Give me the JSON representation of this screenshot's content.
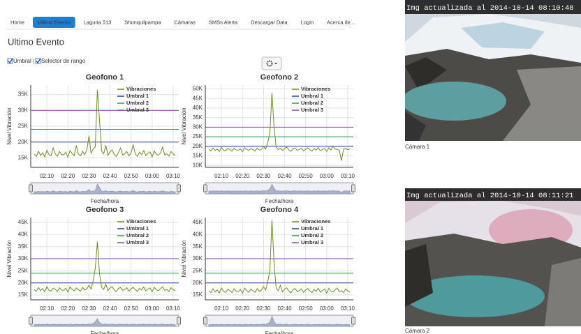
{
  "nav": {
    "items": [
      "Home",
      "Ultimo Evento",
      "Laguna 513",
      "Shonquilpampa",
      "Cámaras",
      "SMSs Alerta",
      "Descargar Data",
      "Login",
      "Acerca de..."
    ],
    "active": 1
  },
  "heading": "Ultimo Evento",
  "controls": {
    "checkboxes": [
      "Umbral",
      "Selector de rango"
    ]
  },
  "charts": [
    {
      "type": "line",
      "title": "Geofono 1",
      "y_label": "Nivel Vibración",
      "x_label": "Fecha/hora",
      "grid": true,
      "x": [
        "02:04",
        "02:05",
        "02:06",
        "02:07",
        "02:08",
        "02:09",
        "02:10",
        "02:11",
        "02:12",
        "02:13",
        "02:14",
        "02:15",
        "02:16",
        "02:17",
        "02:18",
        "02:19",
        "02:20",
        "02:21",
        "02:22",
        "02:23",
        "02:24",
        "02:25",
        "02:26",
        "02:27",
        "02:28",
        "02:29",
        "02:30",
        "02:31",
        "02:32",
        "02:33",
        "02:34",
        "02:35",
        "02:36",
        "02:37",
        "02:38",
        "02:39",
        "02:40",
        "02:41",
        "02:42",
        "02:43",
        "02:44",
        "02:45",
        "02:46",
        "02:47",
        "02:48",
        "02:49",
        "02:50",
        "02:51",
        "02:52",
        "02:53",
        "02:54",
        "02:55",
        "02:56",
        "02:57",
        "02:58",
        "02:59",
        "03:00",
        "03:01",
        "03:02",
        "03:03",
        "03:04",
        "03:05",
        "03:06",
        "03:07",
        "03:08",
        "03:09",
        "03:10",
        "03:11"
      ],
      "xticks": [
        "02:10",
        "02:20",
        "02:30",
        "02:40",
        "02:50",
        "03:00",
        "03:10"
      ],
      "ylim": [
        12000,
        38000
      ],
      "yticks": [
        {
          "value": 15000,
          "label": "15K"
        },
        {
          "value": 20000,
          "label": "20K"
        },
        {
          "value": 25000,
          "label": "25K"
        },
        {
          "value": 30000,
          "label": "30K"
        },
        {
          "value": 35000,
          "label": "35K"
        }
      ],
      "series": [
        {
          "name": "Vibraciones",
          "color": "#6b8e23",
          "values": [
            16200,
            15400,
            17100,
            15800,
            16600,
            15300,
            17400,
            16000,
            15600,
            18200,
            16300,
            15500,
            17000,
            16100,
            15900,
            16800,
            15200,
            17300,
            16400,
            15700,
            18900,
            16200,
            15600,
            17100,
            16000,
            17500,
            22000,
            16500,
            17800,
            18500,
            36500,
            27000,
            17200,
            16300,
            19000,
            15800,
            16900,
            17500,
            16100,
            15400,
            16700,
            18100,
            15900,
            16300,
            17000,
            15600,
            16500,
            19200,
            16200,
            15500,
            16800,
            16000,
            17300,
            15700,
            16400,
            16900,
            15300,
            17200,
            16100,
            15800,
            16600,
            18400,
            15900,
            16300,
            15500,
            17000,
            16200,
            15700
          ]
        }
      ],
      "thresholds": [
        {
          "name": "Umbral 1",
          "color": "#2c3e94",
          "value": 20000
        },
        {
          "name": "Umbral 2",
          "color": "#2e9e4f",
          "value": 24000
        },
        {
          "name": "Umbral 3",
          "color": "#8e44ad",
          "value": 30000
        }
      ]
    },
    {
      "type": "line",
      "title": "Geofono 2",
      "y_label": "Nivel Vibración",
      "x_label": "Fecha/hora",
      "grid": true,
      "x": [
        "02:04",
        "02:05",
        "02:06",
        "02:07",
        "02:08",
        "02:09",
        "02:10",
        "02:11",
        "02:12",
        "02:13",
        "02:14",
        "02:15",
        "02:16",
        "02:17",
        "02:18",
        "02:19",
        "02:20",
        "02:21",
        "02:22",
        "02:23",
        "02:24",
        "02:25",
        "02:26",
        "02:27",
        "02:28",
        "02:29",
        "02:30",
        "02:31",
        "02:32",
        "02:33",
        "02:34",
        "02:35",
        "02:36",
        "02:37",
        "02:38",
        "02:39",
        "02:40",
        "02:41",
        "02:42",
        "02:43",
        "02:44",
        "02:45",
        "02:46",
        "02:47",
        "02:48",
        "02:49",
        "02:50",
        "02:51",
        "02:52",
        "02:53",
        "02:54",
        "02:55",
        "02:56",
        "02:57",
        "02:58",
        "02:59",
        "03:00",
        "03:01",
        "03:02",
        "03:03",
        "03:04",
        "03:05",
        "03:06",
        "03:07",
        "03:08",
        "03:09",
        "03:10",
        "03:11"
      ],
      "xticks": [
        "02:10",
        "02:20",
        "02:30",
        "02:40",
        "02:50",
        "03:00",
        "03:10"
      ],
      "ylim": [
        9000,
        52000
      ],
      "yticks": [
        {
          "value": 10000,
          "label": "10K"
        },
        {
          "value": 15000,
          "label": "15K"
        },
        {
          "value": 20000,
          "label": "20K"
        },
        {
          "value": 25000,
          "label": "25K"
        },
        {
          "value": 30000,
          "label": "30K"
        },
        {
          "value": 35000,
          "label": "35K"
        },
        {
          "value": 40000,
          "label": "40K"
        },
        {
          "value": 45000,
          "label": "45K"
        },
        {
          "value": 50000,
          "label": "50K"
        }
      ],
      "series": [
        {
          "name": "Vibraciones",
          "color": "#6b8e23",
          "values": [
            18200,
            17600,
            19100,
            17900,
            18500,
            17300,
            19400,
            18000,
            17700,
            18800,
            18300,
            17500,
            19000,
            18100,
            17900,
            18600,
            17200,
            19300,
            18400,
            17800,
            18900,
            18200,
            17600,
            19100,
            18000,
            18500,
            20000,
            18500,
            22000,
            27000,
            48000,
            30000,
            19500,
            18300,
            19000,
            17800,
            18900,
            19500,
            18100,
            17400,
            18700,
            19100,
            17900,
            18300,
            19000,
            17600,
            18500,
            19200,
            18200,
            17500,
            18800,
            18000,
            19300,
            17700,
            18400,
            18900,
            17300,
            19200,
            18100,
            20000,
            18600,
            18400,
            17900,
            12500,
            18500,
            19000,
            18200,
            18700
          ]
        }
      ],
      "thresholds": [
        {
          "name": "Umbral 1",
          "color": "#2c3e94",
          "value": 20000
        },
        {
          "name": "Umbral 2",
          "color": "#2e9e4f",
          "value": 25000
        },
        {
          "name": "Umbral 3",
          "color": "#8e44ad",
          "value": 30000
        }
      ]
    },
    {
      "type": "line",
      "title": "Geofono 3",
      "y_label": "Nivel Vibración",
      "x_label": "Fecha/hora",
      "grid": true,
      "x": [
        "02:04",
        "02:05",
        "02:06",
        "02:07",
        "02:08",
        "02:09",
        "02:10",
        "02:11",
        "02:12",
        "02:13",
        "02:14",
        "02:15",
        "02:16",
        "02:17",
        "02:18",
        "02:19",
        "02:20",
        "02:21",
        "02:22",
        "02:23",
        "02:24",
        "02:25",
        "02:26",
        "02:27",
        "02:28",
        "02:29",
        "02:30",
        "02:31",
        "02:32",
        "02:33",
        "02:34",
        "02:35",
        "02:36",
        "02:37",
        "02:38",
        "02:39",
        "02:40",
        "02:41",
        "02:42",
        "02:43",
        "02:44",
        "02:45",
        "02:46",
        "02:47",
        "02:48",
        "02:49",
        "02:50",
        "02:51",
        "02:52",
        "02:53",
        "02:54",
        "02:55",
        "02:56",
        "02:57",
        "02:58",
        "02:59",
        "03:00",
        "03:01",
        "03:02",
        "03:03",
        "03:04",
        "03:05",
        "03:06",
        "03:07",
        "03:08",
        "03:09",
        "03:10",
        "03:11"
      ],
      "xticks": [
        "02:10",
        "02:20",
        "02:30",
        "02:40",
        "02:50",
        "03:00",
        "03:10"
      ],
      "ylim": [
        13000,
        47000
      ],
      "yticks": [
        {
          "value": 15000,
          "label": "15K"
        },
        {
          "value": 20000,
          "label": "20K"
        },
        {
          "value": 25000,
          "label": "25K"
        },
        {
          "value": 30000,
          "label": "30K"
        },
        {
          "value": 35000,
          "label": "35K"
        },
        {
          "value": 40000,
          "label": "40K"
        },
        {
          "value": 45000,
          "label": "45K"
        }
      ],
      "series": [
        {
          "name": "Vibraciones",
          "color": "#6b8e23",
          "values": [
            17200,
            16500,
            18100,
            16800,
            17600,
            16300,
            18400,
            17000,
            16600,
            17800,
            17300,
            16500,
            18000,
            17100,
            16900,
            17800,
            16200,
            18300,
            17400,
            16700,
            17900,
            17200,
            16600,
            18100,
            17000,
            17500,
            19000,
            17500,
            21000,
            26000,
            37000,
            24000,
            18200,
            17300,
            19500,
            16800,
            17900,
            18500,
            17100,
            16400,
            17700,
            18100,
            16900,
            17300,
            18000,
            16600,
            17500,
            18200,
            17200,
            16500,
            17800,
            17000,
            18300,
            16700,
            17400,
            17900,
            16300,
            18200,
            17100,
            16800,
            17600,
            18400,
            16900,
            17300,
            16500,
            18000,
            17200,
            16700
          ]
        }
      ],
      "thresholds": [
        {
          "name": "Umbral 1",
          "color": "#2c3e94",
          "value": 20000
        },
        {
          "name": "Umbral 2",
          "color": "#2e9e4f",
          "value": 24000
        },
        {
          "name": "Umbral 3",
          "color": "#8e44ad",
          "value": 30000
        }
      ]
    },
    {
      "type": "line",
      "title": "Geofono 4",
      "y_label": "Nivel Vibración",
      "x_label": "Fecha/hora",
      "grid": true,
      "x": [
        "02:04",
        "02:05",
        "02:06",
        "02:07",
        "02:08",
        "02:09",
        "02:10",
        "02:11",
        "02:12",
        "02:13",
        "02:14",
        "02:15",
        "02:16",
        "02:17",
        "02:18",
        "02:19",
        "02:20",
        "02:21",
        "02:22",
        "02:23",
        "02:24",
        "02:25",
        "02:26",
        "02:27",
        "02:28",
        "02:29",
        "02:30",
        "02:31",
        "02:32",
        "02:33",
        "02:34",
        "02:35",
        "02:36",
        "02:37",
        "02:38",
        "02:39",
        "02:40",
        "02:41",
        "02:42",
        "02:43",
        "02:44",
        "02:45",
        "02:46",
        "02:47",
        "02:48",
        "02:49",
        "02:50",
        "02:51",
        "02:52",
        "02:53",
        "02:54",
        "02:55",
        "02:56",
        "02:57",
        "02:58",
        "02:59",
        "03:00",
        "03:01",
        "03:02",
        "03:03",
        "03:04",
        "03:05",
        "03:06",
        "03:07",
        "03:08",
        "03:09",
        "03:10",
        "03:11"
      ],
      "xticks": [
        "02:10",
        "02:20",
        "02:30",
        "02:40",
        "02:50",
        "03:00",
        "03:10"
      ],
      "ylim": [
        13000,
        47000
      ],
      "yticks": [
        {
          "value": 15000,
          "label": "15K"
        },
        {
          "value": 20000,
          "label": "20K"
        },
        {
          "value": 25000,
          "label": "25K"
        },
        {
          "value": 30000,
          "label": "30K"
        },
        {
          "value": 35000,
          "label": "35K"
        },
        {
          "value": 40000,
          "label": "40K"
        },
        {
          "value": 45000,
          "label": "45K"
        }
      ],
      "series": [
        {
          "name": "Vibraciones",
          "color": "#6b8e23",
          "values": [
            16700,
            16000,
            17600,
            16300,
            17100,
            15800,
            17900,
            16500,
            16100,
            17300,
            16800,
            16000,
            17500,
            16600,
            16400,
            17300,
            15700,
            17800,
            16900,
            16200,
            17400,
            16700,
            16100,
            17600,
            16500,
            17000,
            18500,
            17000,
            20500,
            25000,
            46000,
            28000,
            17700,
            16800,
            19000,
            16300,
            17400,
            18000,
            16600,
            15900,
            17200,
            17600,
            16400,
            16800,
            17500,
            16100,
            17000,
            17700,
            16700,
            16000,
            17300,
            16500,
            17800,
            16200,
            16900,
            17400,
            15800,
            17700,
            16600,
            16300,
            17100,
            17900,
            16400,
            16800,
            16000,
            17500,
            16700,
            16200
          ]
        }
      ],
      "thresholds": [
        {
          "name": "Umbral 1",
          "color": "#2c3e94",
          "value": 20000
        },
        {
          "name": "Umbral 2",
          "color": "#2e9e4f",
          "value": 24000
        },
        {
          "name": "Umbral 3",
          "color": "#8e44ad",
          "value": 30000
        }
      ]
    }
  ],
  "cameras": [
    {
      "caption": "Img actualizada al 2014-10-14 08:10:48",
      "label": "Cámara 1"
    },
    {
      "caption": "Img actualizada al 2014-10-14 08:11:21",
      "label": "Cámara 2"
    }
  ]
}
